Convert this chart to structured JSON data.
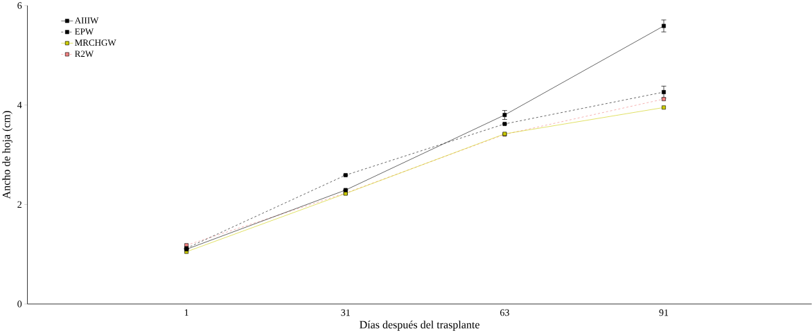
{
  "chart_data": {
    "type": "line",
    "xlabel": "Días después del trasplante",
    "ylabel": "Ancho de hoja (cm)",
    "categories": [
      "1",
      "31",
      "63",
      "91"
    ],
    "ylim": [
      0,
      6
    ],
    "yticks": [
      0,
      2,
      4,
      6
    ],
    "grid": false,
    "legend": "top left",
    "marker": "square",
    "series": [
      {
        "name": "AIIIW",
        "color": "#000000",
        "line_style": "solid",
        "values": [
          1.1,
          2.29,
          3.8,
          5.59
        ],
        "errors": [
          null,
          null,
          0.09,
          0.12
        ]
      },
      {
        "name": "EPW",
        "color": "#000000",
        "line_style": "dashed",
        "values": [
          1.12,
          2.59,
          3.62,
          4.26
        ],
        "errors": [
          null,
          null,
          null,
          0.12
        ]
      },
      {
        "name": "MRCHGW",
        "color": "#cccc00",
        "line_style": "solid",
        "values": [
          1.05,
          2.22,
          3.42,
          3.95
        ]
      },
      {
        "name": "R2W",
        "color": "#f08080",
        "line_style": "dashed",
        "values": [
          1.18,
          2.23,
          3.41,
          4.12
        ]
      }
    ]
  }
}
